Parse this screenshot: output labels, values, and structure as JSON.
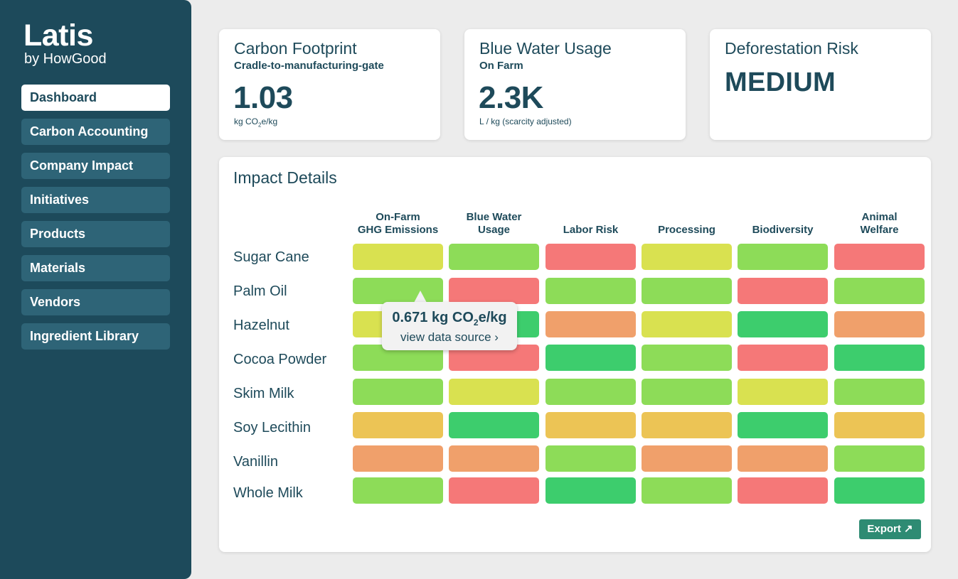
{
  "sidebar": {
    "brand": "Latis",
    "brand_sub": "by HowGood",
    "nav": [
      {
        "label": "Dashboard",
        "active": true
      },
      {
        "label": "Carbon Accounting"
      },
      {
        "label": "Company Impact"
      },
      {
        "label": "Initiatives"
      },
      {
        "label": "Products"
      },
      {
        "label": "Materials"
      },
      {
        "label": "Vendors"
      },
      {
        "label": "Ingredient Library"
      }
    ]
  },
  "stats": {
    "carbon": {
      "title": "Carbon Footprint",
      "subtitle": "Cradle-to-manufacturing-gate",
      "value": "1.03",
      "unit_prefix": "kg CO",
      "unit_sub": "2",
      "unit_suffix": "e/kg"
    },
    "water": {
      "title": "Blue Water Usage",
      "subtitle": "On Farm",
      "value": "2.3K",
      "unit": "L / kg (scarcity adjusted)"
    },
    "deforestation": {
      "title": "Deforestation Risk",
      "value": "MEDIUM"
    }
  },
  "impact": {
    "title": "Impact Details",
    "columns": [
      [
        "On-Farm",
        "GHG Emissions"
      ],
      [
        "Blue Water",
        "Usage"
      ],
      [
        "Labor Risk"
      ],
      [
        "Processing"
      ],
      [
        "Biodiversity"
      ],
      [
        "Animal",
        "Welfare"
      ]
    ],
    "rows": [
      "Sugar Cane",
      "Palm Oil",
      "Hazelnut",
      "Cocoa Powder",
      "Skim Milk",
      "Soy Lecithin",
      "Vanillin",
      "Whole Milk"
    ],
    "ratings": [
      [
        "yellow",
        "lightgreen",
        "red",
        "yellow",
        "lightgreen",
        "red"
      ],
      [
        "lightgreen",
        "red",
        "lightgreen",
        "lightgreen",
        "red",
        "lightgreen"
      ],
      [
        "yellow",
        "green",
        "orange",
        "yellow",
        "green",
        "orange"
      ],
      [
        "lightgreen",
        "red",
        "green",
        "lightgreen",
        "red",
        "green"
      ],
      [
        "lightgreen",
        "yellow",
        "lightgreen",
        "lightgreen",
        "yellow",
        "lightgreen"
      ],
      [
        "amber",
        "green",
        "amber",
        "amber",
        "green",
        "amber"
      ],
      [
        "orange",
        "orange",
        "lightgreen",
        "orange",
        "orange",
        "lightgreen"
      ],
      [
        "lightgreen",
        "red",
        "green",
        "lightgreen",
        "red",
        "green"
      ]
    ],
    "palette": {
      "green": "#3dcd6d",
      "lightgreen": "#8ddc58",
      "yellow": "#d9e150",
      "amber": "#ecc455",
      "orange": "#f0a06b",
      "red": "#f57878"
    },
    "tooltip": {
      "value_prefix": "0.671 kg CO",
      "value_sub": "2",
      "value_suffix": "e/kg",
      "link": "view data source ›"
    },
    "export_label": "Export ↗"
  }
}
